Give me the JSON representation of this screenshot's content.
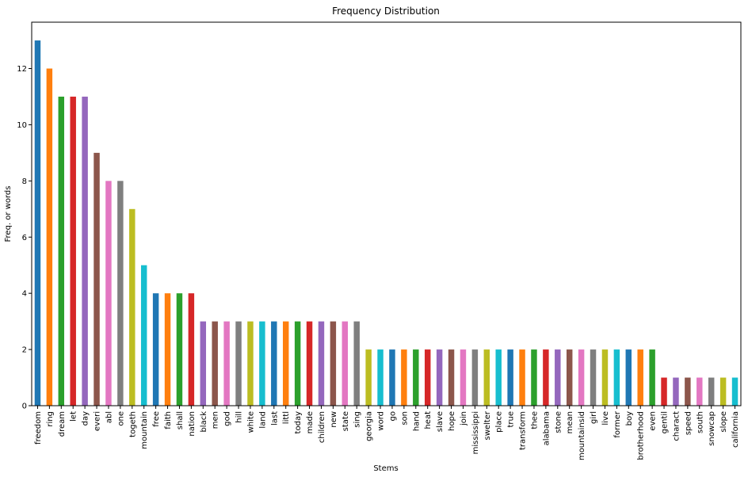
{
  "chart_data": {
    "type": "bar",
    "title": "Frequency Distribution",
    "xlabel": "Stems",
    "ylabel": "Freq. or words",
    "ylim": [
      0,
      13.65
    ],
    "yticks": [
      0,
      2,
      4,
      6,
      8,
      10,
      12
    ],
    "grid": false,
    "legend": "none",
    "palette": [
      "#1f77b4",
      "#ff7f0e",
      "#2ca02c",
      "#d62728",
      "#9467bd",
      "#8c564b",
      "#e377c2",
      "#7f7f7f",
      "#bcbd22",
      "#17becf"
    ],
    "categories": [
      "freedom",
      "ring",
      "dream",
      "let",
      "day",
      "everi",
      "abl",
      "one",
      "togeth",
      "mountain",
      "free",
      "faith",
      "shall",
      "nation",
      "black",
      "men",
      "god",
      "hill",
      "white",
      "land",
      "last",
      "littl",
      "today",
      "made",
      "children",
      "new",
      "state",
      "sing",
      "georgia",
      "word",
      "go",
      "son",
      "hand",
      "heat",
      "slave",
      "hope",
      "join",
      "mississippi",
      "swelter",
      "place",
      "true",
      "transform",
      "thee",
      "alabama",
      "stone",
      "mean",
      "mountainsid",
      "girl",
      "live",
      "former",
      "boy",
      "brotherhood",
      "even",
      "gentil",
      "charact",
      "speed",
      "south",
      "snowcap",
      "slope",
      "california"
    ],
    "values": [
      13,
      12,
      11,
      11,
      11,
      9,
      8,
      8,
      7,
      5,
      4,
      4,
      4,
      4,
      3,
      3,
      3,
      3,
      3,
      3,
      3,
      3,
      3,
      3,
      3,
      3,
      3,
      3,
      2,
      2,
      2,
      2,
      2,
      2,
      2,
      2,
      2,
      2,
      2,
      2,
      2,
      2,
      2,
      2,
      2,
      2,
      2,
      2,
      2,
      2,
      2,
      2,
      2,
      1,
      1,
      1,
      1,
      1,
      1,
      1
    ]
  }
}
